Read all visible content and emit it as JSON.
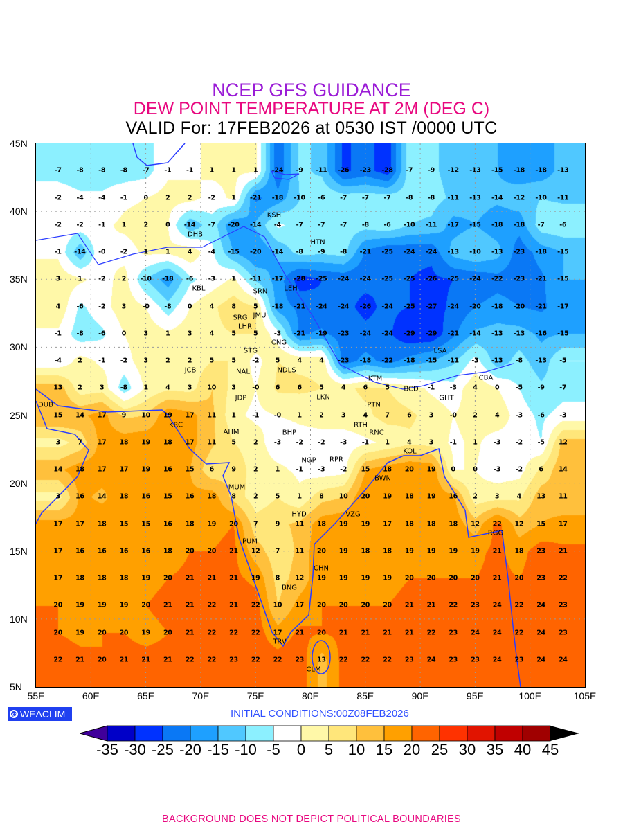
{
  "title": {
    "line1": "NCEP GFS GUIDANCE",
    "line2": "DEW POINT TEMPERATURE AT 2M (DEG C)",
    "line3": "VALID For: 17FEB2026 at 0530 IST /0000 UTC"
  },
  "map": {
    "lat_labels": [
      "45N",
      "40N",
      "35N",
      "30N",
      "25N",
      "20N",
      "15N",
      "10N",
      "5N"
    ],
    "lat_values": [
      45,
      40,
      35,
      30,
      25,
      20,
      15,
      10,
      5
    ],
    "lon_labels": [
      "55E",
      "60E",
      "65E",
      "70E",
      "75E",
      "80E",
      "85E",
      "90E",
      "95E",
      "100E",
      "105E"
    ],
    "lon_values": [
      55,
      60,
      65,
      70,
      75,
      80,
      85,
      90,
      95,
      100,
      105
    ],
    "grid": {
      "lats": [
        43,
        41,
        39,
        37,
        35,
        33,
        31,
        29,
        27,
        25,
        23,
        21,
        19,
        17,
        15,
        13,
        11,
        9,
        7
      ],
      "lons": [
        57,
        59,
        61,
        63,
        65,
        67,
        69,
        71,
        73,
        75,
        77,
        79,
        81,
        83,
        85,
        87,
        89,
        91,
        93,
        95,
        97,
        99,
        101,
        103
      ],
      "values": [
        [
          -7,
          -8,
          -8,
          -8,
          -7,
          -1,
          -1,
          1,
          1,
          1,
          -24,
          -9,
          -11,
          -26,
          -23,
          -28,
          -7,
          -9,
          -12,
          -13,
          -15,
          -18,
          -18,
          -13
        ],
        [
          -2,
          -4,
          -4,
          -1,
          0,
          2,
          2,
          -2,
          1,
          -21,
          -18,
          -10,
          -6,
          -7,
          -7,
          -7,
          -8,
          -8,
          -11,
          -13,
          -14,
          -12,
          -10,
          -11
        ],
        [
          -2,
          -2,
          -1,
          1,
          2,
          0,
          -14,
          -7,
          -20,
          -14,
          -4,
          -7,
          -7,
          -7,
          -8,
          -6,
          -10,
          -11,
          -17,
          -15,
          -18,
          -18,
          -7,
          -6
        ],
        [
          -1,
          -14,
          0,
          -2,
          1,
          1,
          4,
          -4,
          -15,
          -20,
          -14,
          -8,
          -9,
          -8,
          -21,
          -25,
          -24,
          -24,
          -13,
          -10,
          -13,
          -23,
          -18,
          -15
        ],
        [
          3,
          1,
          -2,
          2,
          -10,
          -18,
          -6,
          -3,
          1,
          -11,
          -17,
          -28,
          -25,
          -24,
          -24,
          -25,
          -25,
          -26,
          -25,
          -24,
          -22,
          -23,
          -21,
          -15
        ],
        [
          4,
          -6,
          -2,
          3,
          0,
          -8,
          0,
          4,
          8,
          5,
          -18,
          -21,
          -24,
          -24,
          -26,
          -24,
          -25,
          -27,
          -24,
          -20,
          -18,
          -20,
          -21,
          -17
        ],
        [
          -1,
          -8,
          -6,
          0,
          3,
          1,
          3,
          4,
          5,
          5,
          -3,
          -21,
          -19,
          -23,
          -24,
          -24,
          -29,
          -29,
          -21,
          -14,
          -13,
          -13,
          -16,
          -15
        ],
        [
          -4,
          2,
          -1,
          -2,
          3,
          2,
          2,
          5,
          5,
          -2,
          5,
          4,
          4,
          -23,
          -18,
          -22,
          -18,
          -15,
          -11,
          -3,
          -13,
          -8,
          -13,
          -5
        ],
        [
          13,
          2,
          3,
          -8,
          1,
          4,
          3,
          10,
          3,
          0,
          6,
          6,
          5,
          4,
          6,
          5,
          null,
          -1,
          -3,
          4,
          0,
          -5,
          -9,
          -7
        ],
        [
          15,
          14,
          17,
          9,
          10,
          19,
          17,
          11,
          1,
          -1,
          0,
          1,
          2,
          3,
          4,
          7,
          6,
          3,
          0,
          2,
          4,
          -3,
          -6,
          -3
        ],
        [
          3,
          7,
          17,
          18,
          19,
          18,
          17,
          11,
          5,
          2,
          -3,
          -2,
          -2,
          -3,
          -1,
          1,
          4,
          3,
          -1,
          1,
          -3,
          -2,
          -5,
          12
        ],
        [
          14,
          18,
          17,
          17,
          19,
          16,
          15,
          6,
          9,
          2,
          1,
          -1,
          -3,
          -2,
          15,
          18,
          20,
          19,
          0,
          0,
          -3,
          -2,
          6,
          14
        ],
        [
          3,
          16,
          14,
          18,
          16,
          15,
          16,
          18,
          8,
          2,
          5,
          1,
          8,
          10,
          20,
          19,
          18,
          19,
          16,
          2,
          3,
          4,
          13,
          11
        ],
        [
          17,
          17,
          18,
          15,
          15,
          16,
          18,
          19,
          20,
          7,
          9,
          11,
          18,
          19,
          19,
          17,
          18,
          18,
          18,
          12,
          22,
          12,
          15,
          17
        ],
        [
          17,
          16,
          16,
          16,
          16,
          18,
          20,
          20,
          21,
          12,
          7,
          11,
          20,
          19,
          18,
          18,
          19,
          19,
          19,
          19,
          21,
          18,
          23,
          21
        ],
        [
          17,
          18,
          18,
          18,
          19,
          20,
          21,
          21,
          21,
          19,
          8,
          12,
          19,
          19,
          19,
          19,
          20,
          20,
          20,
          20,
          21,
          20,
          23,
          22
        ],
        [
          20,
          19,
          19,
          19,
          20,
          21,
          21,
          22,
          21,
          22,
          10,
          17,
          20,
          20,
          20,
          20,
          21,
          21,
          22,
          23,
          24,
          22,
          24,
          23
        ],
        [
          20,
          19,
          20,
          20,
          19,
          20,
          21,
          22,
          22,
          22,
          17,
          21,
          20,
          21,
          21,
          21,
          21,
          22,
          23,
          24,
          24,
          22,
          24,
          23
        ],
        [
          22,
          21,
          20,
          21,
          21,
          21,
          22,
          22,
          23,
          22,
          22,
          23,
          13,
          22,
          22,
          22,
          23,
          24,
          23,
          23,
          24,
          23,
          24,
          24
        ]
      ]
    },
    "cities": [
      "KSH",
      "DHB",
      "HTN",
      "KBL",
      "SRN",
      "LEH",
      "JMU",
      "SRG",
      "LHR",
      "CNG",
      "STG",
      "NAL",
      "NDLS",
      "JCB",
      "LSA",
      "KTM",
      "BCD",
      "CBA",
      "GHT",
      "LKN",
      "JDP",
      "PTN",
      "DUB",
      "KRC",
      "RTH",
      "AHM",
      "BHP",
      "RNC",
      "KOL",
      "NGP",
      "RPR",
      "BWN",
      "MUM",
      "HYD",
      "VZG",
      "RGG",
      "PUM",
      "BNG",
      "CHN",
      "TRV",
      "CLM"
    ],
    "coast_color": "#2a3cff"
  },
  "legend": {
    "labels": [
      "-35",
      "-30",
      "-25",
      "-20",
      "-15",
      "-10",
      "-5",
      "0",
      "5",
      "10",
      "15",
      "20",
      "25",
      "30",
      "35",
      "40",
      "45"
    ],
    "thresholds": [
      -35,
      -30,
      -25,
      -20,
      -15,
      -10,
      -5,
      0,
      5,
      10,
      15,
      20,
      25,
      30,
      35,
      40,
      45
    ],
    "colors": [
      "#0000c8",
      "#0032ff",
      "#0a78f5",
      "#1ea0ff",
      "#50c8ff",
      "#8cf0ff",
      "#ffffff",
      "#fff8a8",
      "#ffe67a",
      "#ffc03c",
      "#ffa000",
      "#ff6400",
      "#ff3200",
      "#e11400",
      "#c00000",
      "#a00000"
    ],
    "under_color": "#40009a",
    "over_color": "#000000"
  },
  "footer": {
    "logo_text": "WEACLIM",
    "initial_conditions": "INITIAL  CONDITIONS:00Z08FEB2026",
    "disclaimer": "BACKGROUND DOES NOT DEPICT POLITICAL BOUNDARIES"
  }
}
